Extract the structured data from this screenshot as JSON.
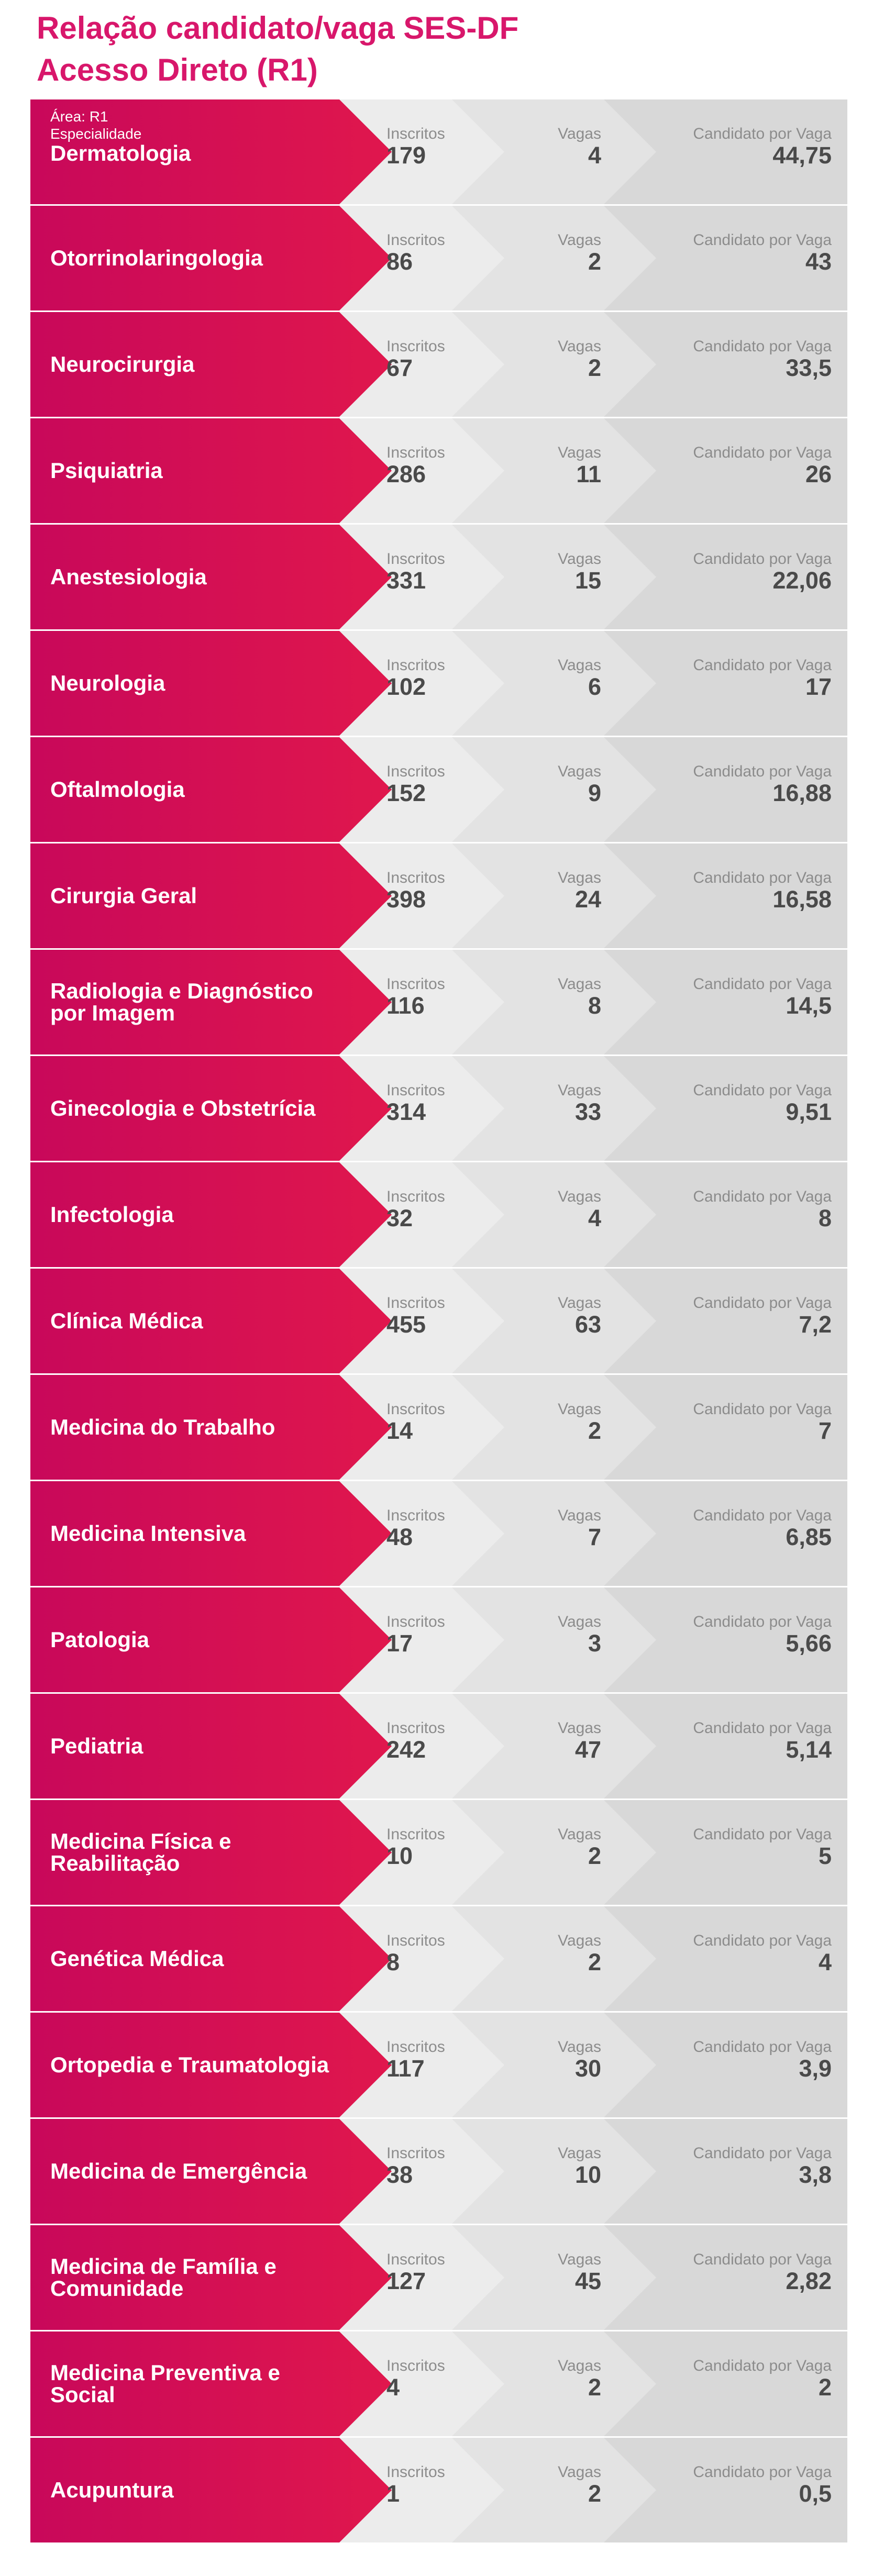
{
  "title": {
    "line1": "Relação candidato/vaga SES-DF",
    "line2": "Acesso Direto (R1)"
  },
  "header_labels": {
    "area": "Área: R1",
    "especialidade": "Especialidade"
  },
  "column_labels": {
    "inscritos": "Inscritos",
    "vagas": "Vagas",
    "candidato_por_vaga": "Candidato por Vaga"
  },
  "colors": {
    "title": "#d8176b",
    "specialty_gradient_start": "#c8085a",
    "specialty_gradient_end": "#e0174d",
    "inscritos_bg": "#ececec",
    "vagas_bg": "#e3e3e3",
    "cpv_bg": "#d8d8d8",
    "value_text": "#4a4a4a",
    "label_text": "#8c8c8c"
  },
  "rows": [
    {
      "specialty": "Dermatologia",
      "inscritos": "179",
      "vagas": "4",
      "cpv": "44,75"
    },
    {
      "specialty": "Otorrinolaringologia",
      "inscritos": "86",
      "vagas": "2",
      "cpv": "43"
    },
    {
      "specialty": "Neurocirurgia",
      "inscritos": "67",
      "vagas": "2",
      "cpv": "33,5"
    },
    {
      "specialty": "Psiquiatria",
      "inscritos": "286",
      "vagas": "11",
      "cpv": "26"
    },
    {
      "specialty": "Anestesiologia",
      "inscritos": "331",
      "vagas": "15",
      "cpv": "22,06"
    },
    {
      "specialty": "Neurologia",
      "inscritos": "102",
      "vagas": "6",
      "cpv": "17"
    },
    {
      "specialty": "Oftalmologia",
      "inscritos": "152",
      "vagas": "9",
      "cpv": "16,88"
    },
    {
      "specialty": "Cirurgia Geral",
      "inscritos": "398",
      "vagas": "24",
      "cpv": "16,58"
    },
    {
      "specialty": "Radiologia e Diagnóstico por Imagem",
      "inscritos": "116",
      "vagas": "8",
      "cpv": "14,5"
    },
    {
      "specialty": "Ginecologia e Obstetrícia",
      "inscritos": "314",
      "vagas": "33",
      "cpv": "9,51"
    },
    {
      "specialty": "Infectologia",
      "inscritos": "32",
      "vagas": "4",
      "cpv": "8"
    },
    {
      "specialty": "Clínica Médica",
      "inscritos": "455",
      "vagas": "63",
      "cpv": "7,2"
    },
    {
      "specialty": "Medicina do Trabalho",
      "inscritos": "14",
      "vagas": "2",
      "cpv": "7"
    },
    {
      "specialty": "Medicina Intensiva",
      "inscritos": "48",
      "vagas": "7",
      "cpv": "6,85"
    },
    {
      "specialty": "Patologia",
      "inscritos": "17",
      "vagas": "3",
      "cpv": "5,66"
    },
    {
      "specialty": "Pediatria",
      "inscritos": "242",
      "vagas": "47",
      "cpv": "5,14"
    },
    {
      "specialty": "Medicina Física e Reabilitação",
      "inscritos": "10",
      "vagas": "2",
      "cpv": "5"
    },
    {
      "specialty": "Genética Médica",
      "inscritos": "8",
      "vagas": "2",
      "cpv": "4"
    },
    {
      "specialty": "Ortopedia e Traumatologia",
      "inscritos": "117",
      "vagas": "30",
      "cpv": "3,9"
    },
    {
      "specialty": "Medicina de Emergência",
      "inscritos": "38",
      "vagas": "10",
      "cpv": "3,8"
    },
    {
      "specialty": "Medicina de Família e Comunidade",
      "inscritos": "127",
      "vagas": "45",
      "cpv": "2,82"
    },
    {
      "specialty": "Medicina Preventiva e Social",
      "inscritos": "4",
      "vagas": "2",
      "cpv": "2"
    },
    {
      "specialty": "Acupuntura",
      "inscritos": "1",
      "vagas": "2",
      "cpv": "0,5"
    }
  ]
}
